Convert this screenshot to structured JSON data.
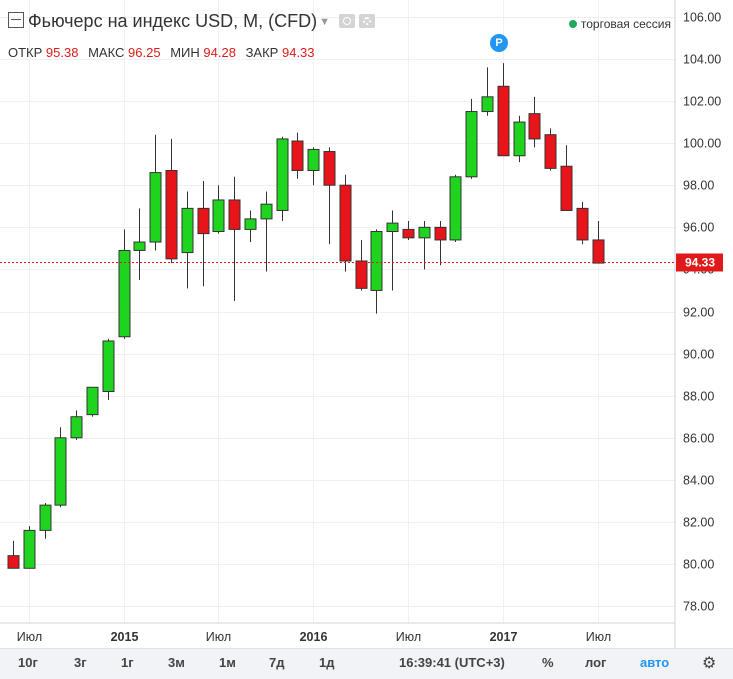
{
  "legend": {
    "title": "Фьючерс на индекс USD, M, (CFD)",
    "open_label": "ОТКР",
    "open_value": "95.38",
    "high_label": "МАКС",
    "high_value": "96.25",
    "low_label": "МИН",
    "low_value": "94.28",
    "close_label": "ЗАКР",
    "close_value": "94.33"
  },
  "session_label": "торговая сессия",
  "marker_label": "P",
  "current_price_label": "94.33",
  "toolbar": {
    "ranges": [
      "10г",
      "3г",
      "1г",
      "3м",
      "1м",
      "7д",
      "1д"
    ],
    "time": "16:39:41 (UTC+3)",
    "percent": "%",
    "log": "лог",
    "auto": "авто"
  },
  "colors": {
    "up": "#1fd41f",
    "down": "#e8141a",
    "border": "#333333",
    "price_line": "#e01a1a"
  },
  "chart_data": {
    "type": "candlestick",
    "timeframe": "M",
    "ylim": [
      77.2,
      106.8
    ],
    "y_ticks": [
      "78.00",
      "80.00",
      "82.00",
      "84.00",
      "86.00",
      "88.00",
      "90.00",
      "92.00",
      "94.00",
      "96.00",
      "98.00",
      "100.00",
      "102.00",
      "104.00",
      "106.00"
    ],
    "x_labels": [
      "Июл",
      "2015",
      "Июл",
      "2016",
      "Июл",
      "2017",
      "Июл"
    ],
    "x_label_index": [
      1,
      7,
      13,
      19,
      25,
      31,
      37
    ],
    "current_price": 94.33,
    "candles": [
      {
        "o": 80.4,
        "h": 81.1,
        "l": 79.8,
        "c": 79.8
      },
      {
        "o": 79.8,
        "h": 81.8,
        "l": 79.8,
        "c": 81.6
      },
      {
        "o": 81.6,
        "h": 82.9,
        "l": 81.2,
        "c": 82.8
      },
      {
        "o": 82.8,
        "h": 86.5,
        "l": 82.7,
        "c": 86.0
      },
      {
        "o": 86.0,
        "h": 87.3,
        "l": 85.9,
        "c": 87.0
      },
      {
        "o": 87.1,
        "h": 88.4,
        "l": 87.0,
        "c": 88.4
      },
      {
        "o": 88.2,
        "h": 90.7,
        "l": 87.8,
        "c": 90.6
      },
      {
        "o": 90.8,
        "h": 95.9,
        "l": 90.7,
        "c": 94.9
      },
      {
        "o": 94.9,
        "h": 96.9,
        "l": 93.5,
        "c": 95.3
      },
      {
        "o": 95.3,
        "h": 100.4,
        "l": 94.9,
        "c": 98.6
      },
      {
        "o": 98.7,
        "h": 100.2,
        "l": 94.3,
        "c": 94.5
      },
      {
        "o": 94.8,
        "h": 97.7,
        "l": 93.1,
        "c": 96.9
      },
      {
        "o": 96.9,
        "h": 98.2,
        "l": 93.2,
        "c": 95.7
      },
      {
        "o": 95.8,
        "h": 98.0,
        "l": 95.7,
        "c": 97.3
      },
      {
        "o": 97.3,
        "h": 98.4,
        "l": 92.5,
        "c": 95.9
      },
      {
        "o": 95.9,
        "h": 96.8,
        "l": 95.3,
        "c": 96.4
      },
      {
        "o": 96.4,
        "h": 97.7,
        "l": 93.9,
        "c": 97.1
      },
      {
        "o": 96.8,
        "h": 100.3,
        "l": 96.3,
        "c": 100.2
      },
      {
        "o": 100.1,
        "h": 100.5,
        "l": 98.3,
        "c": 98.7
      },
      {
        "o": 98.7,
        "h": 99.8,
        "l": 98.0,
        "c": 99.7
      },
      {
        "o": 99.6,
        "h": 99.8,
        "l": 95.2,
        "c": 98.0
      },
      {
        "o": 98.0,
        "h": 98.5,
        "l": 93.9,
        "c": 94.4
      },
      {
        "o": 94.4,
        "h": 95.4,
        "l": 93.0,
        "c": 93.1
      },
      {
        "o": 93.0,
        "h": 95.9,
        "l": 91.9,
        "c": 95.8
      },
      {
        "o": 95.8,
        "h": 96.8,
        "l": 93.0,
        "c": 96.2
      },
      {
        "o": 95.9,
        "h": 96.3,
        "l": 95.4,
        "c": 95.5
      },
      {
        "o": 95.5,
        "h": 96.3,
        "l": 94.0,
        "c": 96.0
      },
      {
        "o": 96.0,
        "h": 96.3,
        "l": 94.2,
        "c": 95.4
      },
      {
        "o": 95.4,
        "h": 98.5,
        "l": 95.3,
        "c": 98.4
      },
      {
        "o": 98.4,
        "h": 102.1,
        "l": 98.3,
        "c": 101.5
      },
      {
        "o": 101.5,
        "h": 103.6,
        "l": 101.3,
        "c": 102.2
      },
      {
        "o": 102.7,
        "h": 103.8,
        "l": 99.4,
        "c": 99.4
      },
      {
        "o": 99.4,
        "h": 101.3,
        "l": 99.1,
        "c": 101.0
      },
      {
        "o": 101.4,
        "h": 102.2,
        "l": 99.8,
        "c": 100.2
      },
      {
        "o": 100.4,
        "h": 100.7,
        "l": 98.7,
        "c": 98.8
      },
      {
        "o": 98.9,
        "h": 99.9,
        "l": 96.8,
        "c": 96.8
      },
      {
        "o": 96.9,
        "h": 97.2,
        "l": 95.2,
        "c": 95.4
      },
      {
        "o": 95.4,
        "h": 96.3,
        "l": 94.3,
        "c": 94.3
      }
    ]
  }
}
